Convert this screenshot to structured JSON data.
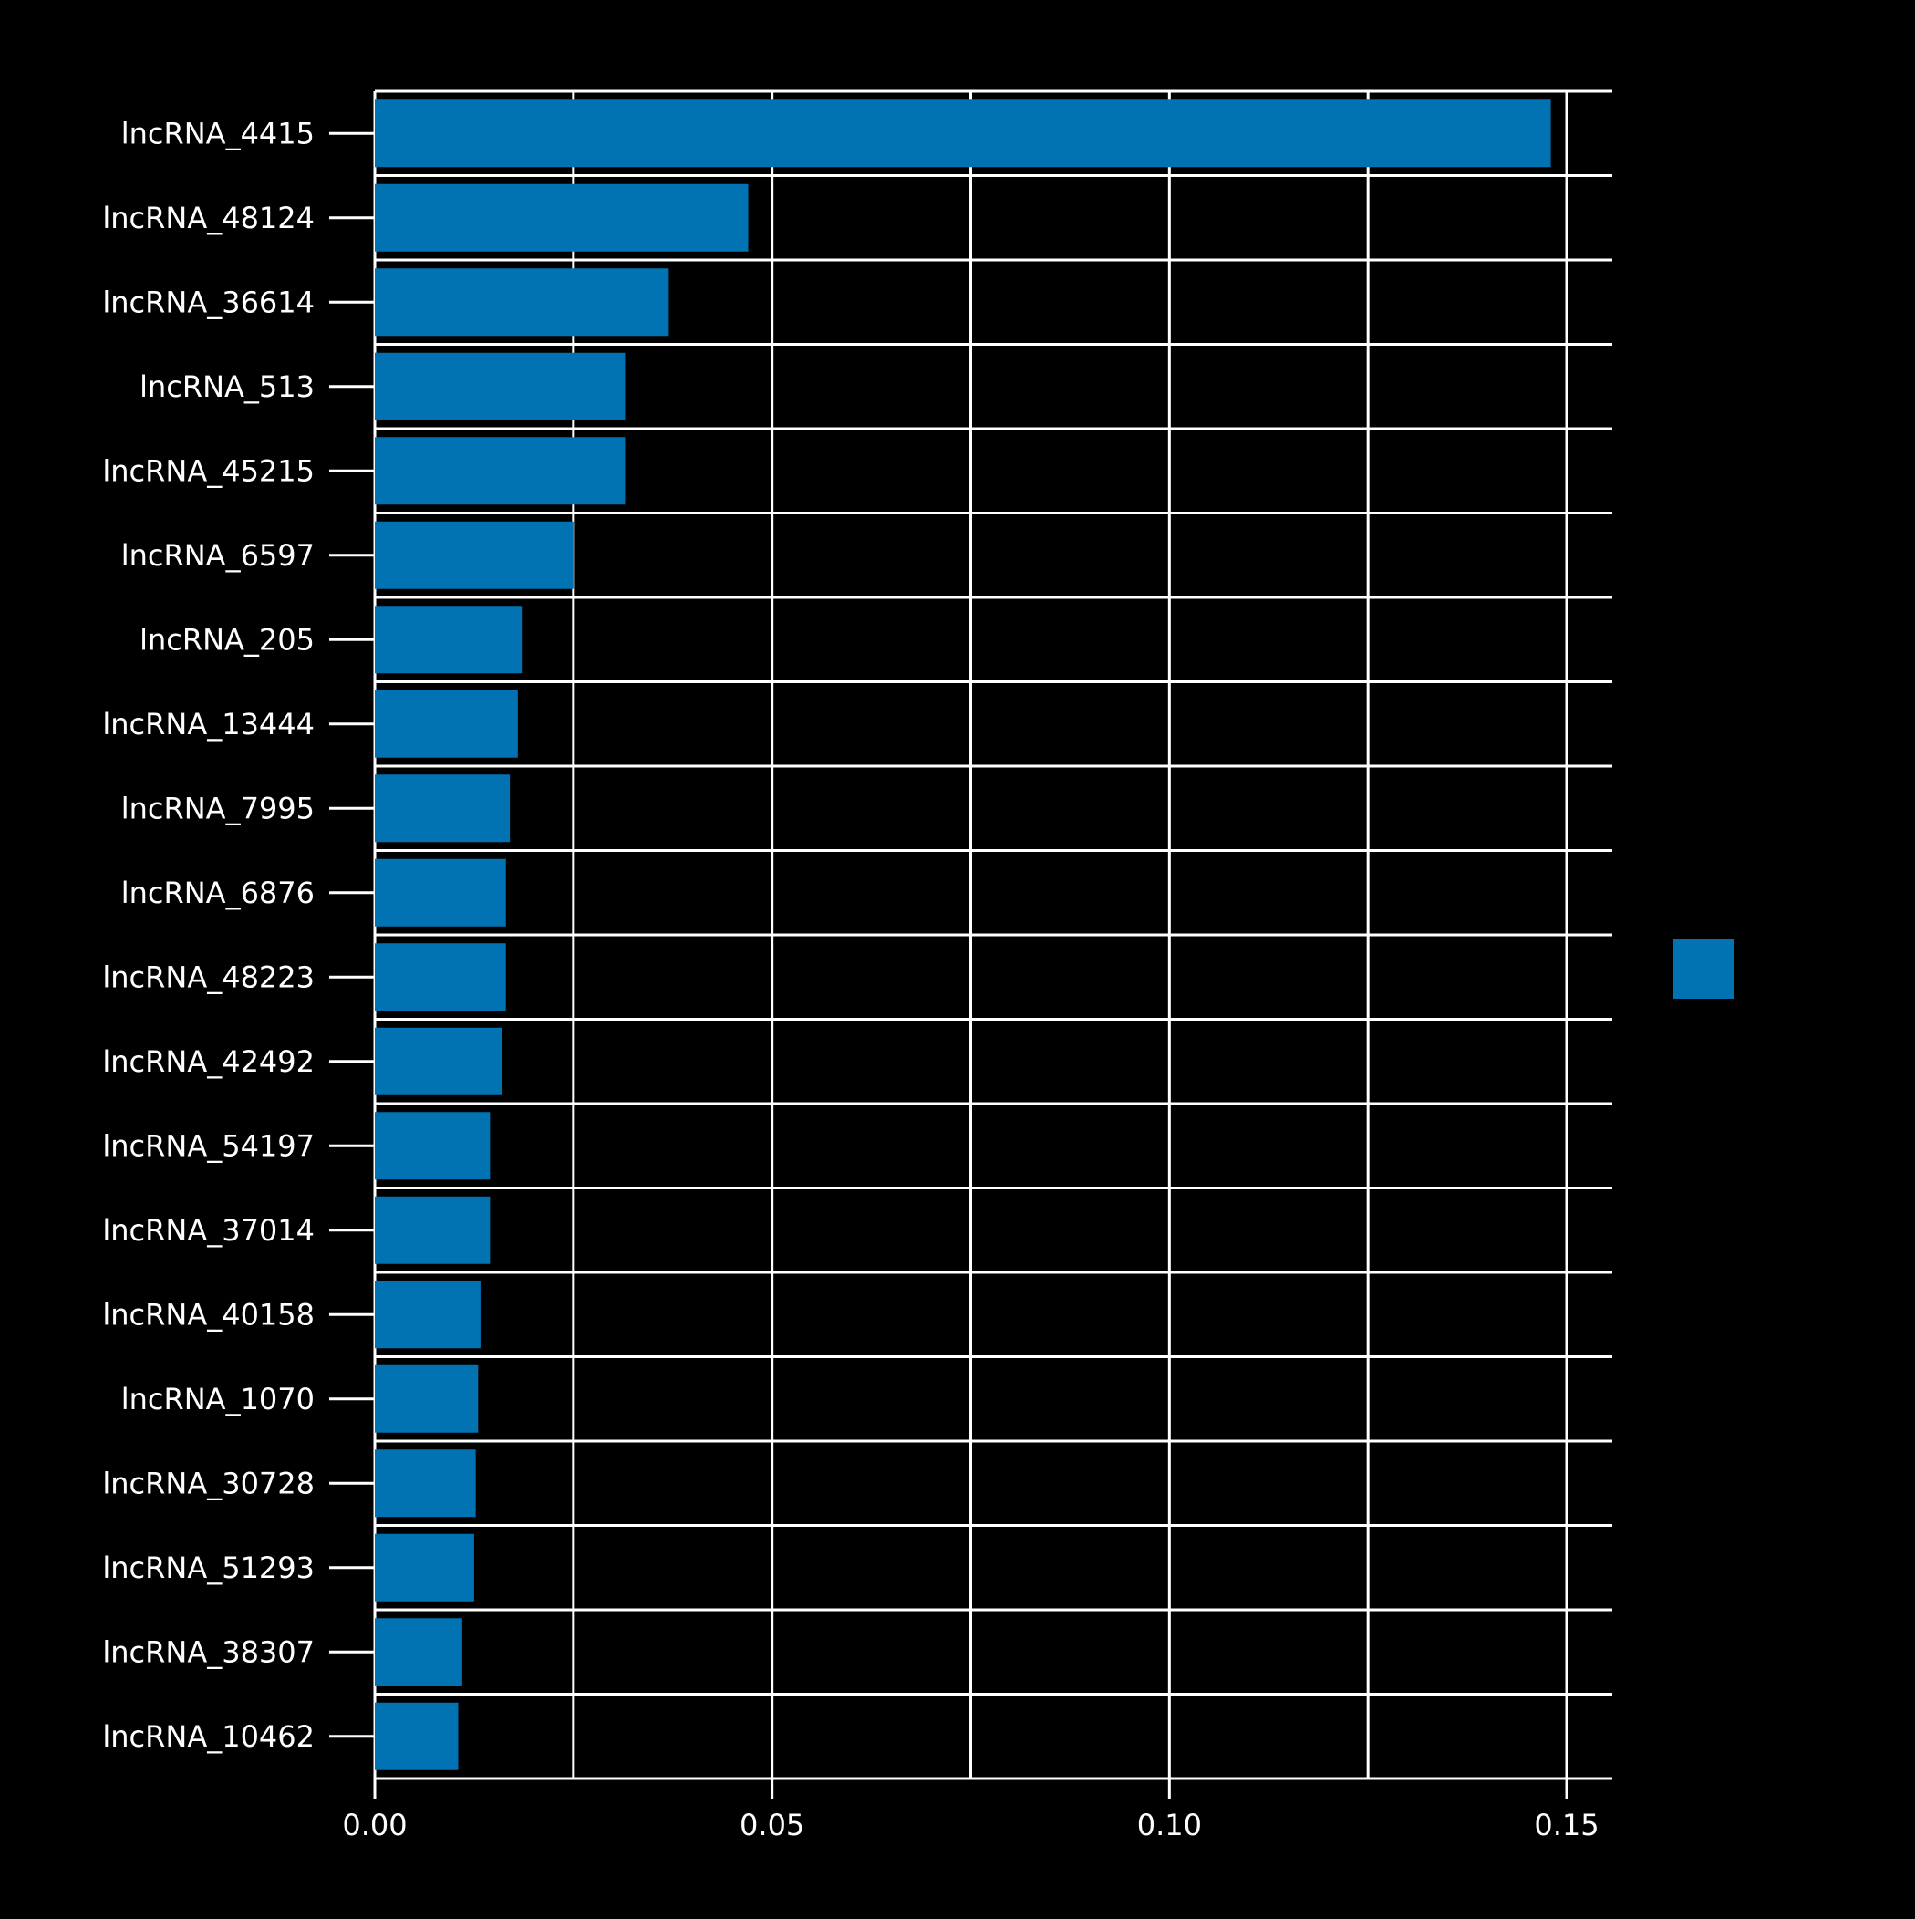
{
  "chart_data": {
    "type": "bar",
    "orientation": "horizontal",
    "title": "",
    "xlabel": "",
    "ylabel": "",
    "categories": [
      "lncRNA_4415",
      "lncRNA_48124",
      "lncRNA_36614",
      "lncRNA_513",
      "lncRNA_45215",
      "lncRNA_6597",
      "lncRNA_205",
      "lncRNA_13444",
      "lncRNA_7995",
      "lncRNA_6876",
      "lncRNA_48223",
      "lncRNA_42492",
      "lncRNA_54197",
      "lncRNA_37014",
      "lncRNA_40158",
      "lncRNA_1070",
      "lncRNA_30728",
      "lncRNA_51293",
      "lncRNA_38307",
      "lncRNA_10462"
    ],
    "values": [
      0.148,
      0.047,
      0.037,
      0.0315,
      0.0315,
      0.025,
      0.0185,
      0.018,
      0.017,
      0.0165,
      0.0165,
      0.016,
      0.0145,
      0.0145,
      0.0133,
      0.013,
      0.0127,
      0.0125,
      0.011,
      0.0105
    ],
    "xlim": [
      0,
      0.156
    ],
    "x_tick_values": [
      0,
      0.05,
      0.1,
      0.15
    ],
    "x_tick_labels": [
      "0.00",
      "0.05",
      "0.10",
      "0.15"
    ],
    "x_gridline_values": [
      0,
      0.025,
      0.05,
      0.075,
      0.1,
      0.125,
      0.15
    ],
    "grid": true,
    "legend": {
      "position": "right",
      "swatch_color": "#0173b2",
      "label": ""
    },
    "colors": {
      "bar": "#0173b2",
      "background": "#000000",
      "grid": "#ffffff",
      "text": "#ffffff"
    }
  }
}
